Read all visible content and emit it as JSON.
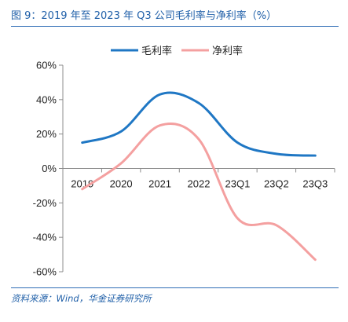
{
  "title": "图 9：2019 年至 2023 年 Q3 公司毛利率与净利率（%）",
  "source": "资料来源：Wind，华金证券研究所",
  "chart_data": {
    "type": "line",
    "categories": [
      "2019",
      "2020",
      "2021",
      "2022",
      "23Q1",
      "23Q2",
      "23Q3"
    ],
    "ylim": [
      -60,
      60
    ],
    "yticks": [
      "60%",
      "40%",
      "20%",
      "0%",
      "-20%",
      "-40%",
      "-60%"
    ],
    "ytick_values": [
      60,
      40,
      20,
      0,
      -20,
      -40,
      -60
    ],
    "legend_position": "top-center",
    "grid": false,
    "series": [
      {
        "name": "毛利率",
        "color": "#1f77c4",
        "values": [
          15,
          21.5,
          43,
          38,
          15,
          8.5,
          7.5
        ]
      },
      {
        "name": "净利率",
        "color": "#f4a0a0",
        "values": [
          -12,
          3,
          25,
          17,
          -29,
          -33,
          -53
        ]
      }
    ]
  }
}
